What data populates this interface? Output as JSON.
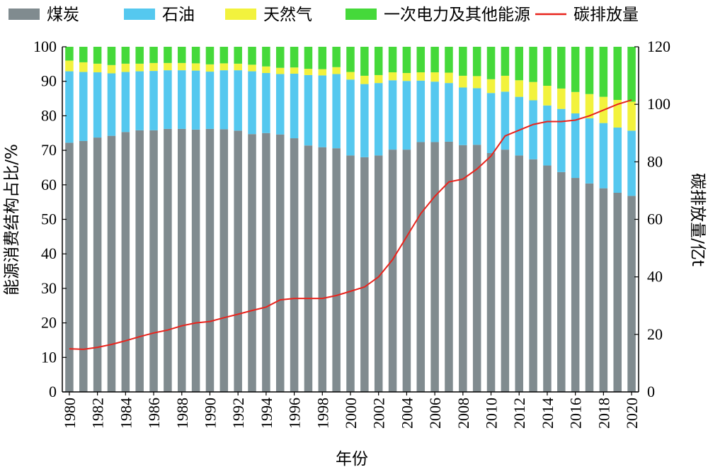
{
  "chart_data": {
    "type": "bar",
    "stacked": true,
    "title": "",
    "xlabel": "年份",
    "ylabel": "能源消费结构占比/%",
    "ylabel_right": "碳排放量/亿t",
    "ylim": [
      0,
      100
    ],
    "ylim_right": [
      0,
      120
    ],
    "yticks": [
      "0",
      "10",
      "20",
      "30",
      "40",
      "50",
      "60",
      "70",
      "80",
      "90",
      "100"
    ],
    "yticks_right": [
      "0",
      "20",
      "40",
      "60",
      "80",
      "100",
      "120"
    ],
    "legend_position": "top",
    "categories": [
      1980,
      1981,
      1982,
      1983,
      1984,
      1985,
      1986,
      1987,
      1988,
      1989,
      1990,
      1991,
      1992,
      1993,
      1994,
      1995,
      1996,
      1997,
      1998,
      1999,
      2000,
      2001,
      2002,
      2003,
      2004,
      2005,
      2006,
      2007,
      2008,
      2009,
      2010,
      2011,
      2012,
      2013,
      2014,
      2015,
      2016,
      2017,
      2018,
      2019,
      2020
    ],
    "xtick_labels": [
      "1980",
      "1982",
      "1984",
      "1986",
      "1988",
      "1990",
      "1992",
      "1994",
      "1996",
      "1998",
      "2000",
      "2002",
      "2004",
      "2006",
      "2008",
      "2010",
      "2012",
      "2014",
      "2016",
      "2018",
      "2020"
    ],
    "series": [
      {
        "name": "煤炭",
        "color": "#808b8f",
        "axis": "left",
        "values": [
          72.2,
          72.7,
          73.7,
          74.2,
          75.3,
          75.8,
          75.8,
          76.2,
          76.2,
          76.0,
          76.2,
          76.1,
          75.7,
          74.7,
          75.0,
          74.6,
          73.5,
          71.4,
          70.9,
          70.6,
          68.5,
          68.0,
          68.5,
          70.2,
          70.2,
          72.4,
          72.4,
          72.5,
          71.5,
          71.6,
          69.2,
          70.2,
          68.5,
          67.4,
          65.6,
          63.7,
          62.0,
          60.4,
          59.0,
          57.7,
          56.8
        ]
      },
      {
        "name": "石油",
        "color": "#55c8ef",
        "axis": "left",
        "values": [
          20.7,
          20.0,
          18.9,
          18.1,
          17.4,
          17.1,
          17.2,
          17.0,
          17.0,
          17.1,
          16.6,
          17.1,
          17.5,
          18.2,
          17.4,
          17.5,
          18.7,
          20.4,
          20.8,
          21.5,
          22.0,
          21.2,
          21.0,
          20.1,
          19.9,
          17.8,
          17.5,
          17.0,
          16.7,
          16.4,
          17.4,
          16.8,
          17.0,
          17.1,
          17.4,
          18.3,
          18.7,
          18.9,
          18.9,
          18.9,
          18.9
        ]
      },
      {
        "name": "天然气",
        "color": "#f2f23d",
        "axis": "left",
        "values": [
          3.1,
          2.8,
          2.5,
          2.4,
          2.4,
          2.2,
          2.3,
          2.1,
          2.1,
          2.1,
          2.1,
          2.0,
          1.9,
          1.9,
          1.9,
          1.8,
          1.8,
          1.8,
          1.8,
          2.0,
          2.2,
          2.4,
          2.3,
          2.3,
          2.3,
          2.4,
          2.7,
          3.0,
          3.4,
          3.5,
          4.0,
          4.6,
          4.8,
          5.3,
          5.7,
          5.9,
          6.2,
          7.0,
          7.6,
          8.0,
          8.4
        ]
      },
      {
        "name": "一次电力及其他能源",
        "color": "#45d93a",
        "axis": "left",
        "values": [
          4.0,
          4.5,
          4.9,
          5.3,
          4.9,
          4.9,
          4.7,
          4.7,
          4.7,
          4.8,
          5.1,
          4.8,
          4.9,
          5.2,
          5.7,
          6.1,
          6.0,
          6.4,
          6.5,
          5.9,
          7.3,
          8.4,
          8.2,
          7.4,
          7.6,
          7.4,
          7.4,
          7.5,
          8.4,
          8.5,
          9.4,
          8.4,
          9.7,
          10.2,
          11.3,
          12.1,
          13.1,
          13.7,
          14.5,
          15.4,
          15.9
        ]
      },
      {
        "name": "碳排放量",
        "color": "#e8231c",
        "axis": "right",
        "kind": "line",
        "values": [
          15.0,
          14.8,
          15.5,
          16.5,
          17.8,
          19.2,
          20.5,
          21.5,
          23.0,
          24.0,
          24.5,
          25.8,
          27.0,
          28.3,
          29.5,
          32.0,
          32.5,
          32.5,
          32.5,
          33.5,
          35.0,
          36.5,
          40.0,
          46.0,
          54.0,
          62.0,
          68.0,
          73.0,
          74.0,
          77.5,
          82.0,
          89.0,
          91.0,
          93.0,
          94.0,
          94.0,
          94.5,
          96.0,
          98.0,
          100.0,
          101.5
        ]
      }
    ]
  }
}
